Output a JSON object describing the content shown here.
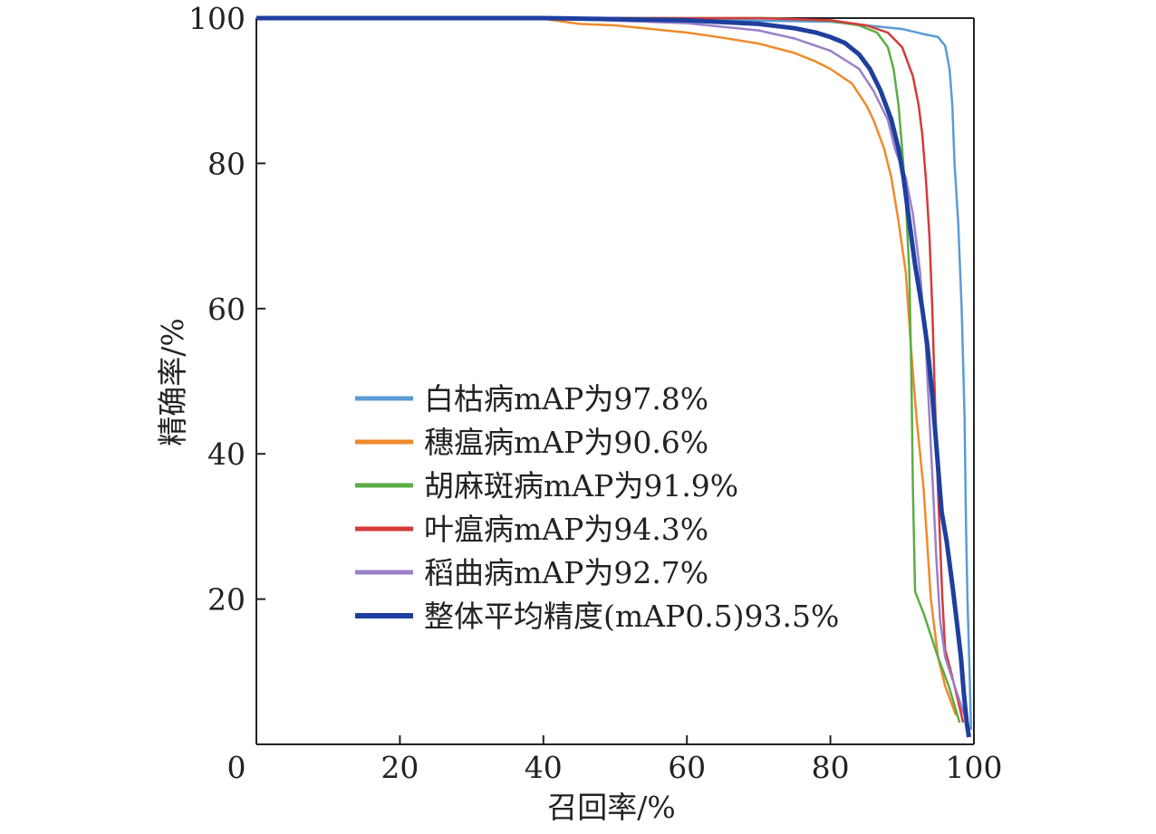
{
  "chart_data": {
    "type": "line",
    "title": "",
    "xlabel": "召回率/%",
    "ylabel": "精确率/%",
    "xlim": [
      0,
      100
    ],
    "ylim": [
      0,
      100
    ],
    "x_ticks": [
      "0",
      "20",
      "40",
      "60",
      "80",
      "100"
    ],
    "y_ticks": [
      "20",
      "40",
      "60",
      "80",
      "100"
    ],
    "grid": false,
    "legend_position": "center-left",
    "series": [
      {
        "name": "白枯病mAP为97.8%",
        "color": "#5b9bd5",
        "points": [
          [
            0,
            100
          ],
          [
            40,
            100
          ],
          [
            60,
            99.8
          ],
          [
            80,
            99.5
          ],
          [
            90,
            98.5
          ],
          [
            93,
            97.8
          ],
          [
            95,
            97.4
          ],
          [
            96,
            96.2
          ],
          [
            96.6,
            93
          ],
          [
            97,
            88
          ],
          [
            97.3,
            80
          ],
          [
            97.8,
            72
          ],
          [
            98.3,
            60
          ],
          [
            98.7,
            45
          ],
          [
            98.9,
            30
          ],
          [
            99.1,
            20
          ],
          [
            99.4,
            10
          ],
          [
            99.6,
            2
          ]
        ]
      },
      {
        "name": "穗瘟病mAP为90.6%",
        "color": "#f08a2b",
        "points": [
          [
            0,
            100
          ],
          [
            40,
            99.9
          ],
          [
            45,
            99.2
          ],
          [
            50,
            99
          ],
          [
            55,
            98.5
          ],
          [
            60,
            98
          ],
          [
            65,
            97.3
          ],
          [
            70,
            96.5
          ],
          [
            75,
            95.2
          ],
          [
            78,
            94
          ],
          [
            80,
            93
          ],
          [
            83,
            91
          ],
          [
            85,
            88
          ],
          [
            86,
            86
          ],
          [
            87.5,
            82
          ],
          [
            88.5,
            78
          ],
          [
            89.5,
            72
          ],
          [
            90.5,
            65
          ],
          [
            91.2,
            55
          ],
          [
            92,
            45
          ],
          [
            93,
            35
          ],
          [
            94,
            20
          ],
          [
            95,
            12
          ],
          [
            96,
            8
          ],
          [
            97.5,
            4
          ]
        ]
      },
      {
        "name": "胡麻斑病mAP为91.9%",
        "color": "#5aad45",
        "points": [
          [
            0,
            100
          ],
          [
            60,
            100
          ],
          [
            72,
            100
          ],
          [
            80,
            99.6
          ],
          [
            84,
            99
          ],
          [
            86.5,
            98
          ],
          [
            88,
            96
          ],
          [
            88.8,
            93
          ],
          [
            89.5,
            88
          ],
          [
            90,
            82
          ],
          [
            90.5,
            75
          ],
          [
            91,
            65
          ],
          [
            91.3,
            50
          ],
          [
            91.5,
            35
          ],
          [
            91.8,
            21
          ],
          [
            93,
            18
          ],
          [
            95,
            12
          ],
          [
            96.5,
            8
          ],
          [
            98,
            3
          ]
        ]
      },
      {
        "name": "叶瘟病mAP为94.3%",
        "color": "#d63a3a",
        "points": [
          [
            0,
            100
          ],
          [
            60,
            100
          ],
          [
            70,
            100
          ],
          [
            80,
            99.7
          ],
          [
            85,
            99
          ],
          [
            88,
            98
          ],
          [
            90,
            96
          ],
          [
            91.5,
            92
          ],
          [
            92.3,
            88
          ],
          [
            92.8,
            84
          ],
          [
            93.3,
            78
          ],
          [
            93.8,
            70
          ],
          [
            94.2,
            60
          ],
          [
            94.5,
            50
          ],
          [
            94.8,
            40
          ],
          [
            95.2,
            30
          ],
          [
            95.6,
            20
          ],
          [
            96,
            13
          ],
          [
            96.8,
            10
          ],
          [
            97.8,
            6
          ],
          [
            98.5,
            3
          ]
        ]
      },
      {
        "name": "稻曲病mAP为92.7%",
        "color": "#9b80c8",
        "points": [
          [
            0,
            100
          ],
          [
            40,
            100
          ],
          [
            60,
            99.3
          ],
          [
            70,
            98.3
          ],
          [
            75,
            97.2
          ],
          [
            80,
            95.5
          ],
          [
            84,
            93
          ],
          [
            86,
            90
          ],
          [
            88,
            86
          ],
          [
            89,
            82
          ],
          [
            90.5,
            78
          ],
          [
            91.5,
            73
          ],
          [
            92.5,
            65
          ],
          [
            93.3,
            55
          ],
          [
            93.8,
            45
          ],
          [
            94.3,
            35
          ],
          [
            94.8,
            25
          ],
          [
            95.3,
            17
          ],
          [
            96,
            12
          ],
          [
            97,
            9
          ],
          [
            98,
            6
          ],
          [
            99,
            3
          ]
        ]
      },
      {
        "name": "整体平均精度(mAP0.5)93.5%",
        "color": "#1f3f9f",
        "points": [
          [
            0,
            100
          ],
          [
            40,
            100
          ],
          [
            60,
            99.7
          ],
          [
            70,
            99.2
          ],
          [
            75,
            98.6
          ],
          [
            78,
            98
          ],
          [
            80,
            97.4
          ],
          [
            82,
            96.6
          ],
          [
            84,
            95
          ],
          [
            85.5,
            93
          ],
          [
            87,
            90
          ],
          [
            88.5,
            86
          ],
          [
            89.5,
            82
          ],
          [
            90.2,
            78
          ],
          [
            91,
            72
          ],
          [
            91.8,
            66
          ],
          [
            92.8,
            60
          ],
          [
            93.5,
            55
          ],
          [
            94.2,
            48
          ],
          [
            94.7,
            42
          ],
          [
            95.1,
            37
          ],
          [
            95.5,
            32
          ],
          [
            96.2,
            28
          ],
          [
            97,
            22
          ],
          [
            97.6,
            17
          ],
          [
            98.2,
            12
          ],
          [
            98.6,
            7
          ],
          [
            99,
            3
          ],
          [
            99.3,
            1
          ]
        ]
      }
    ]
  }
}
